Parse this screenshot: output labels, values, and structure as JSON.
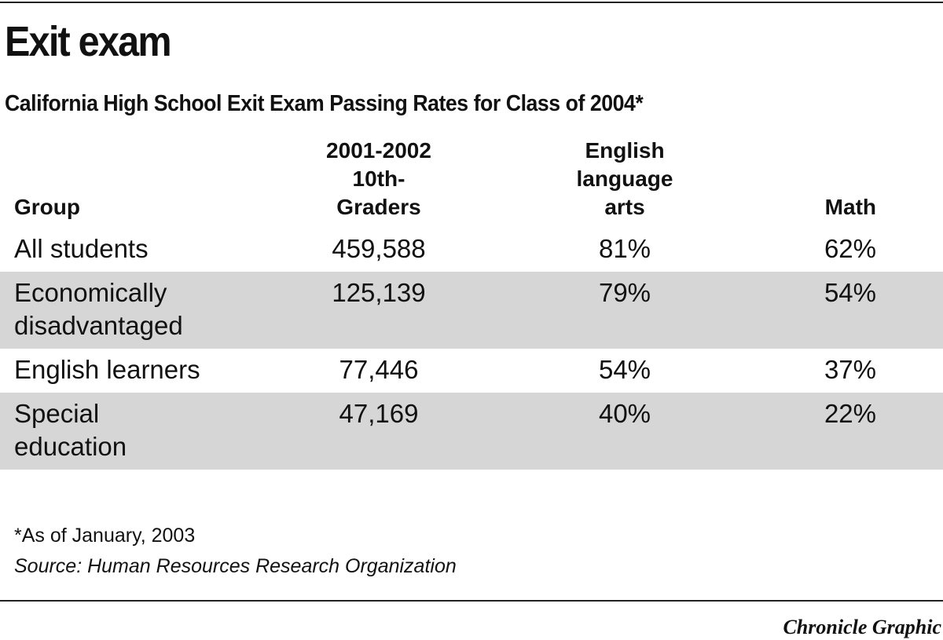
{
  "header": {
    "title": "Exit exam",
    "subtitle": "California High School Exit Exam Passing Rates for Class of 2004*"
  },
  "table": {
    "columns": [
      [
        "Group"
      ],
      [
        "2001-2002",
        "10th-",
        "Graders"
      ],
      [
        "English",
        "language",
        "arts"
      ],
      [
        "Math"
      ]
    ],
    "rows": [
      [
        "All students",
        "459,588",
        "81%",
        "62%"
      ],
      [
        "Economically disadvantaged",
        "125,139",
        "79%",
        "54%"
      ],
      [
        "English learners",
        "77,446",
        "54%",
        "37%"
      ],
      [
        "Special education",
        "47,169",
        "40%",
        "22%"
      ]
    ]
  },
  "footer": {
    "note": "*As of January, 2003",
    "source": "Source: Human Resources Research Organization",
    "credit": "Chronicle Graphic"
  }
}
